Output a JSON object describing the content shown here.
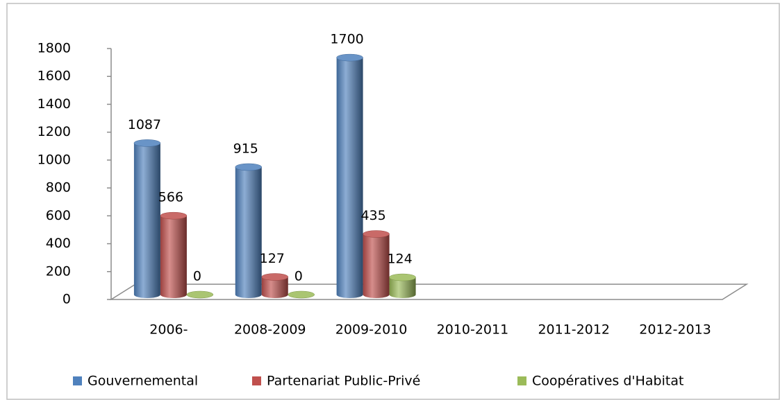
{
  "chart_data": {
    "type": "bar3d",
    "categories": [
      "2006-",
      "2008-2009",
      "2009-2010",
      "2010-2011",
      "2011-2012",
      "2012-2013"
    ],
    "series": [
      {
        "name": "Gouvernemental",
        "color": "#4f81bd",
        "values": [
          1087,
          915,
          1700,
          null,
          null,
          null
        ]
      },
      {
        "name": "Partenariat Public-Privé",
        "color": "#c0504d",
        "values": [
          566,
          127,
          435,
          null,
          null,
          null
        ]
      },
      {
        "name": "Coopératives d'Habitat",
        "color": "#9bbb59",
        "values": [
          0,
          0,
          124,
          null,
          null,
          null
        ]
      }
    ],
    "ylim": [
      0,
      1800
    ],
    "yticks": [
      0,
      200,
      400,
      600,
      800,
      1000,
      1200,
      1400,
      1600,
      1800
    ],
    "grid": false,
    "legend": "bottom"
  }
}
